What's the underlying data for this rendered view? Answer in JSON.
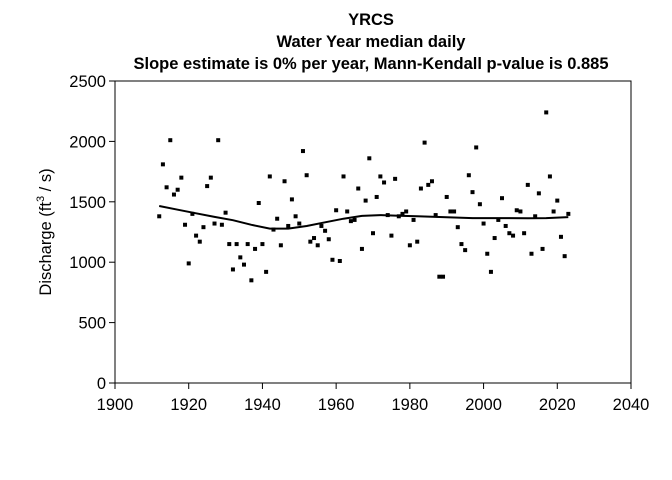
{
  "chart_data": {
    "type": "scatter",
    "title": "YRCS",
    "subtitle": "Water Year  median daily",
    "subtitle2": "Slope estimate is 0% per year, Mann-Kendall p-value is 0.885",
    "ylabel_main": "Discharge (ft",
    "ylabel_sup": "3",
    "ylabel_end": " / s)",
    "xlim": [
      1900,
      2040
    ],
    "ylim": [
      0,
      2500
    ],
    "xticks": [
      "1900",
      "1920",
      "1940",
      "1960",
      "1980",
      "2000",
      "2020",
      "2040"
    ],
    "yticks": [
      "0",
      "500",
      "1000",
      "1500",
      "2000",
      "2500"
    ],
    "series": [
      {
        "x": [
          1912,
          1913,
          1914,
          1915,
          1916,
          1917,
          1918,
          1919,
          1920,
          1921,
          1922,
          1923,
          1924,
          1925,
          1926,
          1927,
          1928,
          1929,
          1930,
          1931,
          1932,
          1933,
          1934,
          1935,
          1936,
          1937,
          1938,
          1939,
          1940,
          1941,
          1942,
          1943,
          1944,
          1945,
          1946,
          1947,
          1948,
          1949,
          1950,
          1951,
          1952,
          1953,
          1954,
          1955,
          1956,
          1957,
          1958,
          1959,
          1960,
          1961,
          1962,
          1963,
          1964,
          1965,
          1966,
          1967,
          1968,
          1969,
          1970,
          1971,
          1972,
          1973,
          1974,
          1975,
          1976,
          1977,
          1978,
          1979,
          1980,
          1981,
          1982,
          1983,
          1984,
          1985,
          1986,
          1987,
          1988,
          1989,
          1990,
          1991,
          1992,
          1993,
          1994,
          1995,
          1996,
          1997,
          1998,
          1999,
          2000,
          2001,
          2002,
          2003,
          2004,
          2005,
          2006,
          2007,
          2008,
          2009,
          2010,
          2011,
          2012,
          2013,
          2014,
          2015,
          2016,
          2017,
          2018,
          2019,
          2020,
          2021,
          2022,
          2023
        ],
        "y": [
          1380,
          1810,
          1620,
          2010,
          1560,
          1600,
          1700,
          1310,
          990,
          1400,
          1220,
          1170,
          1290,
          1630,
          1700,
          1320,
          2010,
          1310,
          1410,
          1150,
          940,
          1150,
          1040,
          980,
          1150,
          850,
          1110,
          1490,
          1150,
          920,
          1710,
          1270,
          1360,
          1140,
          1670,
          1300,
          1520,
          1380,
          1320,
          1920,
          1720,
          1170,
          1200,
          1140,
          1300,
          1260,
          1190,
          1020,
          1430,
          1010,
          1710,
          1420,
          1340,
          1350,
          1610,
          1110,
          1510,
          1860,
          1240,
          1540,
          1710,
          1660,
          1390,
          1220,
          1690,
          1380,
          1400,
          1420,
          1140,
          1350,
          1170,
          1610,
          1990,
          1640,
          1670,
          1390,
          880,
          880,
          1540,
          1420,
          1420,
          1290,
          1150,
          1100,
          1720,
          1580,
          1950,
          1480,
          1320,
          1070,
          920,
          1200,
          1350,
          1530,
          1300,
          1240,
          1220,
          1430,
          1420,
          1240,
          1640,
          1070,
          1380,
          1570,
          1110,
          2240,
          1710,
          1420,
          1510,
          1210,
          1050,
          1400
        ]
      },
      {
        "name": "trend",
        "x": [
          1912,
          1917,
          1922,
          1927,
          1932,
          1937,
          1942,
          1947,
          1952,
          1957,
          1962,
          1967,
          1972,
          1977,
          1982,
          1987,
          1992,
          1997,
          2002,
          2007,
          2012,
          2017,
          2023
        ],
        "y": [
          1465,
          1435,
          1405,
          1375,
          1348,
          1310,
          1278,
          1278,
          1300,
          1330,
          1360,
          1383,
          1390,
          1385,
          1380,
          1375,
          1370,
          1365,
          1365,
          1365,
          1363,
          1365,
          1373
        ]
      }
    ]
  }
}
